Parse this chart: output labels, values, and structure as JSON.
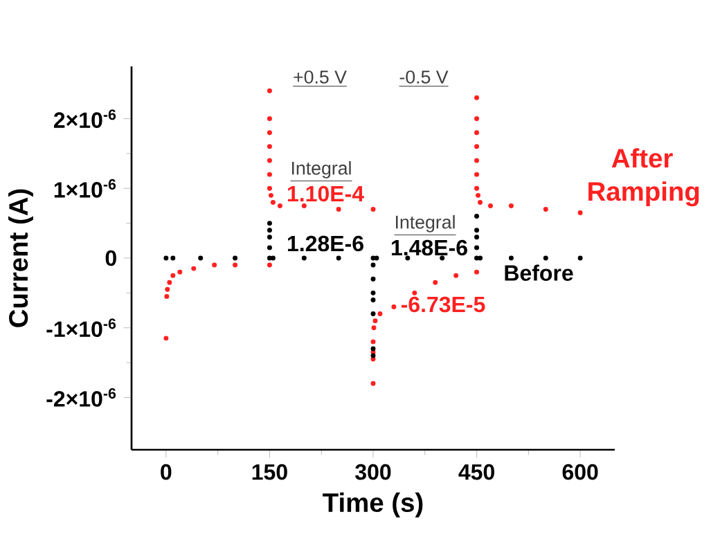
{
  "chart_data": {
    "type": "scatter",
    "xlabel": "Time (s)",
    "ylabel": "Current (A)",
    "xlim": [
      -50,
      650
    ],
    "ylim": [
      -2.75e-06,
      2.75e-06
    ],
    "xticks": [
      0,
      150,
      300,
      450,
      600
    ],
    "yticks": [
      {
        "value": -2e-06,
        "label": "-2×10$^{-6}$"
      },
      {
        "value": -1e-06,
        "label": "-1×10$^{-6}$"
      },
      0,
      {
        "value": 1e-06,
        "label": "1×10$^{-6}$"
      },
      {
        "value": 2e-06,
        "label": "2×10$^{-6}$"
      }
    ],
    "grid": false,
    "legend": false,
    "marker": "circle",
    "series": [
      {
        "name": "After Ramping",
        "color": "#ff2020",
        "x": [
          0,
          1,
          2,
          5,
          10,
          20,
          40,
          70,
          100,
          150,
          150,
          150,
          150,
          150,
          150,
          150,
          150,
          152,
          155,
          165,
          200,
          250,
          300,
          300,
          300,
          300,
          300,
          301,
          303,
          310,
          330,
          360,
          390,
          420,
          450,
          450,
          450,
          450,
          450,
          450,
          450,
          450,
          452,
          455,
          470,
          500,
          550,
          600
        ],
        "values": [
          -1.15e-06,
          -5.5e-07,
          -4.5e-07,
          -3.5e-07,
          -2.5e-07,
          -2e-07,
          -1.5e-07,
          -1e-07,
          -1e-07,
          -1e-07,
          2.4e-06,
          2e-06,
          1.8e-06,
          1.6e-06,
          1.4e-06,
          1.2e-06,
          1e-06,
          9e-07,
          8e-07,
          7.5e-07,
          7.5e-07,
          7e-07,
          7e-07,
          -1.8e-06,
          -1.45e-06,
          -1.35e-06,
          -1.2e-06,
          -1e-06,
          -9e-07,
          -8e-07,
          -7e-07,
          -5e-07,
          -3.5e-07,
          -2.5e-07,
          -2e-07,
          2.3e-06,
          2e-06,
          1.8e-06,
          1.6e-06,
          1.4e-06,
          1.2e-06,
          1e-06,
          9e-07,
          8e-07,
          7.5e-07,
          7.5e-07,
          7e-07,
          6.5e-07
        ]
      },
      {
        "name": "Before",
        "color": "#000000",
        "x": [
          0,
          10,
          50,
          100,
          150,
          150,
          150,
          150,
          150,
          155,
          200,
          250,
          300,
          300,
          300,
          300,
          300,
          300,
          300,
          300,
          305,
          350,
          400,
          450,
          450,
          450,
          450,
          450,
          455,
          500,
          550,
          600
        ],
        "values": [
          0,
          0,
          0,
          0,
          0,
          5e-07,
          4e-07,
          3e-07,
          1.5e-07,
          0,
          0,
          0,
          0,
          -1e-07,
          -3e-07,
          -5e-07,
          -6e-07,
          -8e-07,
          -1.3e-06,
          -1.4e-06,
          0,
          0,
          0,
          0,
          6e-07,
          4e-07,
          3e-07,
          1.5e-07,
          0,
          0,
          0,
          0
        ]
      }
    ],
    "annotations": [
      "+0.5 V",
      "-0.5 V",
      "Integral",
      "1.10E-4",
      "1.28E-6",
      "Integral",
      "1.48E-6",
      "-6.73E-5"
    ]
  }
}
